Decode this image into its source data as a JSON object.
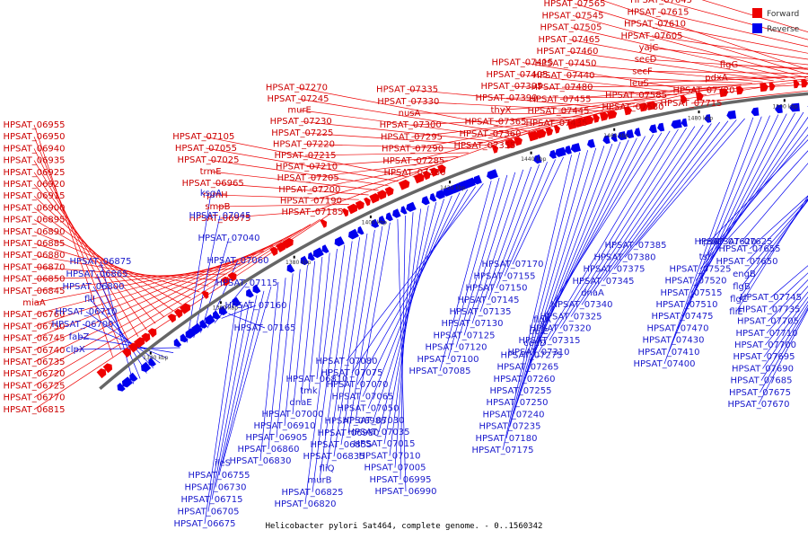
{
  "caption": "Helicobacter pylori Sat464, complete genome. - 0..1560342",
  "legend": [
    {
      "label": "Forward",
      "color": "#ee0000"
    },
    {
      "label": "Reverse",
      "color": "#0000ee"
    }
  ],
  "colors": {
    "forward": "#ee0000",
    "reverse": "#0000ee",
    "backbone": "#666666"
  },
  "ticks": [
    "1340 kbp",
    "1360 kbp",
    "1380 kbp",
    "1400 kbp",
    "1420 kbp",
    "1440 kbp",
    "1460 kbp",
    "1480 kbp",
    "1500 kbp",
    "1520 kbp",
    "1540 kbp"
  ],
  "forward_labels": [
    "HPSAT_06955",
    "HPSAT_06950",
    "HPSAT_06940",
    "HPSAT_06935",
    "HPSAT_06925",
    "HPSAT_06920",
    "HPSAT_06915",
    "HPSAT_06900",
    "HPSAT_06895",
    "HPSAT_06890",
    "HPSAT_06885",
    "HPSAT_06880",
    "HPSAT_06870",
    "HPSAT_06850",
    "HPSAT_06845",
    "miaA",
    "HPSAT_06760",
    "HPSAT_06750",
    "HPSAT_06745",
    "HPSAT_06740",
    "HPSAT_06735",
    "HPSAT_06720",
    "HPSAT_06725",
    "HPSAT_06770",
    "HPSAT_06815",
    "HPSAT_06975",
    "smpB",
    "rpmH",
    "HPSAT_06965",
    "trmE",
    "HPSAT_07025",
    "HPSAT_07055",
    "HPSAT_07105",
    "HPSAT_07185",
    "HPSAT_07190",
    "HPSAT_07200",
    "HPSAT_07205",
    "HPSAT_07210",
    "HPSAT_07215",
    "HPSAT_07220",
    "HPSAT_07225",
    "HPSAT_07230",
    "murE",
    "HPSAT_07245",
    "HPSAT_07270",
    "HPSAT_07280",
    "HPSAT_07285",
    "HPSAT_07290",
    "HPSAT_07295",
    "HPSAT_07300",
    "nusA",
    "HPSAT_07330",
    "HPSAT_07335",
    "HPSAT_07355",
    "HPSAT_07360",
    "HPSAT_07365",
    "thyX",
    "HPSAT_07390",
    "HPSAT_07395",
    "HPSAT_07405",
    "HPSAT_07415",
    "HPSAT_07435",
    "HPSAT_07445",
    "HPSAT_07455",
    "HPSAT_07480",
    "HPSAT_07440",
    "HPSAT_07450",
    "HPSAT_07460",
    "HPSAT_07465",
    "HPSAT_07505",
    "HPSAT_07545",
    "HPSAT_07565",
    "HPSAT_07575",
    "HPSAT_07580",
    "HPSAT_07585",
    "leuS",
    "secF",
    "secD",
    "yajC",
    "HPSAT_07605",
    "HPSAT_07610",
    "HPSAT_07615",
    "HPSAT_07645",
    "HPSAT_07660",
    "HPSAT_07715",
    "HPSAT_07720",
    "pdxA",
    "flgG"
  ],
  "reverse_labels": [
    "HPSAT_06875",
    "HPSAT_06865",
    "HPSAT_06800",
    "fliI",
    "HPSAT_06710",
    "HPSAT_06700",
    "fabZ",
    "clpX",
    "ksgA",
    "HPSAT_07045",
    "HPSAT_07040",
    "HPSAT_07060",
    "HPSAT_07115",
    "HPSAT_07160",
    "HPSAT_07165",
    "HPSAT_06675",
    "HPSAT_06705",
    "HPSAT_06715",
    "HPSAT_06730",
    "HPSAT_06755",
    "ileS",
    "HPSAT_06830",
    "HPSAT_06860",
    "HPSAT_06905",
    "HPSAT_06910",
    "HPSAT_07000",
    "dnaE",
    "tmk",
    "HPSAT_06810",
    "HPSAT_06820",
    "HPSAT_06825",
    "murB",
    "fliQ",
    "HPSAT_06835",
    "HPSAT_06855",
    "HPSAT_06980",
    "HPSAT_06985",
    "HPSAT_06990",
    "HPSAT_06995",
    "HPSAT_07005",
    "HPSAT_07010",
    "HPSAT_07015",
    "HPSAT_07035",
    "HPSAT_07030",
    "HPSAT_07050",
    "HPSAT_07065",
    "HPSAT_07070",
    "HPSAT_07075",
    "HPSAT_07080",
    "HPSAT_07085",
    "HPSAT_07100",
    "HPSAT_07120",
    "HPSAT_07125",
    "HPSAT_07130",
    "HPSAT_07135",
    "HPSAT_07145",
    "HPSAT_07150",
    "HPSAT_07155",
    "HPSAT_07170",
    "HPSAT_07175",
    "HPSAT_07180",
    "HPSAT_07235",
    "HPSAT_07240",
    "HPSAT_07250",
    "HPSAT_07255",
    "HPSAT_07260",
    "HPSAT_07265",
    "HPSAT_07275",
    "coaD",
    "ubiE",
    "flgA",
    "HPSAT_07310",
    "HPSAT_07315",
    "HPSAT_07320",
    "HPSAT_07325",
    "HPSAT_07340",
    "dnaA",
    "HPSAT_07345",
    "HPSAT_07375",
    "HPSAT_07380",
    "HPSAT_07385",
    "HPSAT_07400",
    "HPSAT_07410",
    "HPSAT_07430",
    "HPSAT_07470",
    "HPSAT_07475",
    "HPSAT_07510",
    "HPSAT_07515",
    "HPSAT_07520",
    "HPSAT_07525",
    "tsf",
    "rpsB",
    "HPSAT_07620",
    "HPSAT_07625",
    "fliE",
    "flgC",
    "flgB",
    "engB",
    "HPSAT_07650",
    "HPSAT_07655",
    "HPSAT_07670",
    "HPSAT_07675",
    "HPSAT_07685",
    "HPSAT_07690",
    "HPSAT_07695",
    "HPSAT_07700",
    "HPSAT_07710",
    "HPSAT_07705",
    "HPSAT_07735",
    "HPSAT_07745"
  ]
}
